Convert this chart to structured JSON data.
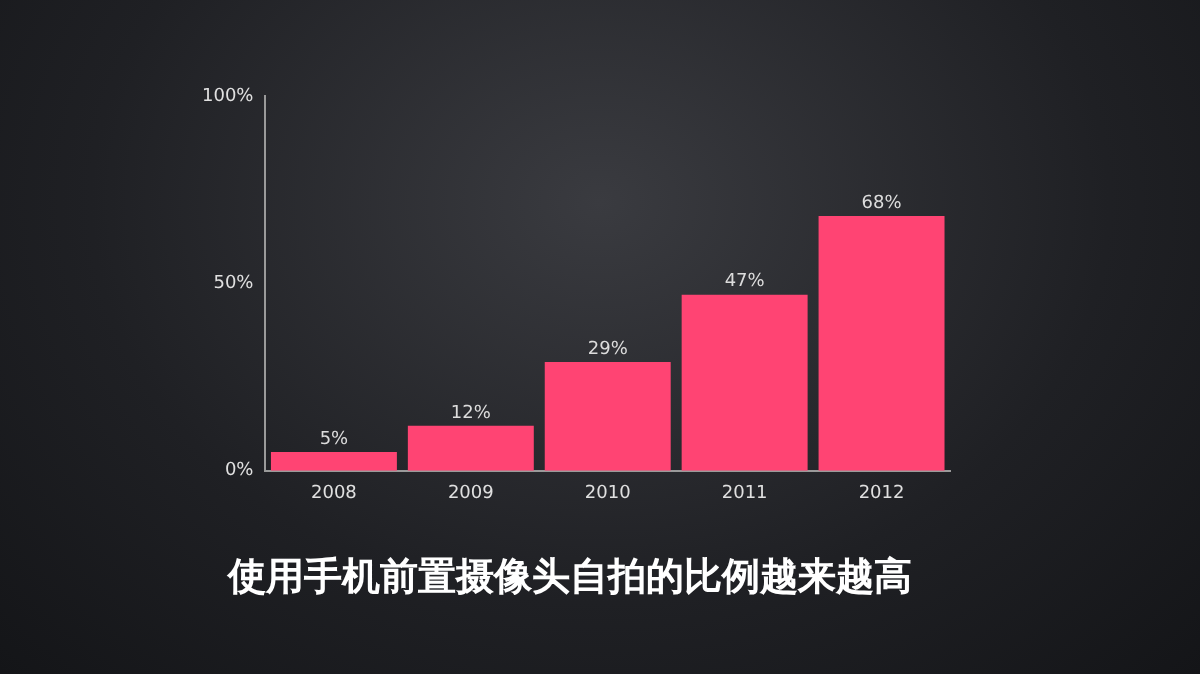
{
  "chart_data": {
    "type": "bar",
    "title": "使用手机前置摄像头自拍的比例越来越高",
    "categories": [
      "2008",
      "2009",
      "2010",
      "2011",
      "2012"
    ],
    "values": [
      5,
      12,
      29,
      47,
      68
    ],
    "value_labels": [
      "5%",
      "12%",
      "29%",
      "47%",
      "68%"
    ],
    "color": "#ff4473",
    "ylim": [
      0,
      100
    ],
    "yticks": [
      {
        "value": 0,
        "label": "0%"
      },
      {
        "value": 50,
        "label": "50%"
      },
      {
        "value": 100,
        "label": "100%"
      }
    ],
    "grid": false,
    "legend": false
  }
}
